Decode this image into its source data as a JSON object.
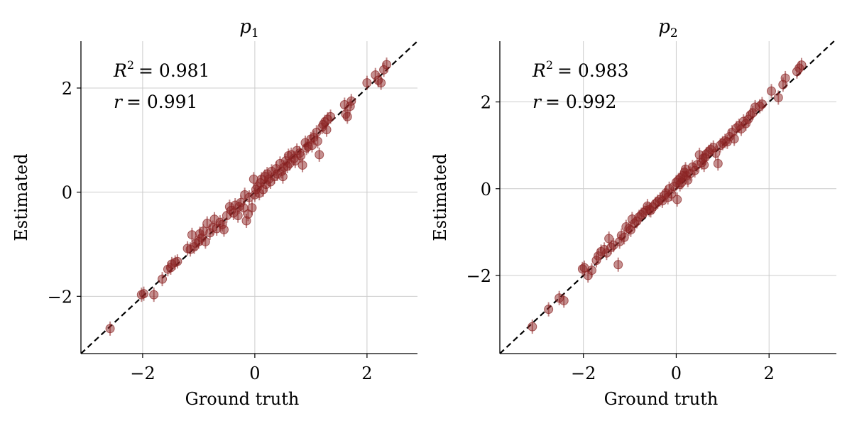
{
  "chart_data": [
    {
      "type": "scatter",
      "title": "p",
      "title_subscript": "1",
      "xlabel": "Ground truth",
      "ylabel": "Estimated",
      "xlim": [
        -3.1,
        2.9
      ],
      "ylim": [
        -3.1,
        2.9
      ],
      "xticks": [
        -2,
        0,
        2
      ],
      "yticks": [
        -2,
        0,
        2
      ],
      "grid": true,
      "reference_line": "identity (dashed black)",
      "marker_color": "#8b2323",
      "stats": {
        "r2_label": "R",
        "r2_value": "= 0.981",
        "r_label": "r",
        "r_value": "= 0.991"
      },
      "points": [
        [
          -2.58,
          -2.62
        ],
        [
          -2.02,
          -1.97
        ],
        [
          -1.98,
          -1.95
        ],
        [
          -1.8,
          -1.97
        ],
        [
          -1.65,
          -1.67
        ],
        [
          -1.55,
          -1.48
        ],
        [
          -1.5,
          -1.45
        ],
        [
          -1.48,
          -1.38
        ],
        [
          -1.42,
          -1.35
        ],
        [
          -1.38,
          -1.33
        ],
        [
          -1.2,
          -1.08
        ],
        [
          -1.15,
          -1.1
        ],
        [
          -1.12,
          -0.82
        ],
        [
          -1.08,
          -1.05
        ],
        [
          -1.05,
          -0.98
        ],
        [
          -1.0,
          -0.95
        ],
        [
          -0.98,
          -0.8
        ],
        [
          -0.95,
          -0.88
        ],
        [
          -0.92,
          -0.75
        ],
        [
          -0.88,
          -0.95
        ],
        [
          -0.85,
          -0.6
        ],
        [
          -0.8,
          -0.78
        ],
        [
          -0.75,
          -0.68
        ],
        [
          -0.72,
          -0.52
        ],
        [
          -0.68,
          -0.7
        ],
        [
          -0.62,
          -0.58
        ],
        [
          -0.58,
          -0.62
        ],
        [
          -0.55,
          -0.72
        ],
        [
          -0.5,
          -0.45
        ],
        [
          -0.45,
          -0.28
        ],
        [
          -0.42,
          -0.35
        ],
        [
          -0.38,
          -0.4
        ],
        [
          -0.35,
          -0.25
        ],
        [
          -0.3,
          -0.45
        ],
        [
          -0.28,
          -0.28
        ],
        [
          -0.25,
          -0.2
        ],
        [
          -0.2,
          -0.3
        ],
        [
          -0.18,
          -0.05
        ],
        [
          -0.15,
          -0.55
        ],
        [
          -0.12,
          -0.42
        ],
        [
          -0.1,
          -0.1
        ],
        [
          -0.05,
          -0.3
        ],
        [
          -0.02,
          0.25
        ],
        [
          0.0,
          -0.05
        ],
        [
          0.02,
          0.05
        ],
        [
          0.05,
          0.1
        ],
        [
          0.08,
          -0.02
        ],
        [
          0.1,
          0.18
        ],
        [
          0.12,
          0.25
        ],
        [
          0.15,
          0.05
        ],
        [
          0.18,
          0.3
        ],
        [
          0.2,
          0.15
        ],
        [
          0.22,
          0.35
        ],
        [
          0.25,
          0.25
        ],
        [
          0.28,
          0.2
        ],
        [
          0.3,
          0.4
        ],
        [
          0.35,
          0.3
        ],
        [
          0.38,
          0.45
        ],
        [
          0.4,
          0.35
        ],
        [
          0.45,
          0.55
        ],
        [
          0.48,
          0.4
        ],
        [
          0.5,
          0.3
        ],
        [
          0.52,
          0.48
        ],
        [
          0.55,
          0.6
        ],
        [
          0.58,
          0.5
        ],
        [
          0.6,
          0.7
        ],
        [
          0.62,
          0.55
        ],
        [
          0.65,
          0.72
        ],
        [
          0.7,
          0.65
        ],
        [
          0.72,
          0.6
        ],
        [
          0.75,
          0.8
        ],
        [
          0.8,
          0.75
        ],
        [
          0.82,
          0.7
        ],
        [
          0.85,
          0.52
        ],
        [
          0.9,
          0.95
        ],
        [
          0.92,
          0.85
        ],
        [
          0.95,
          0.88
        ],
        [
          1.0,
          1.02
        ],
        [
          1.02,
          0.9
        ],
        [
          1.05,
          1.05
        ],
        [
          1.1,
          1.15
        ],
        [
          1.12,
          0.98
        ],
        [
          1.15,
          0.72
        ],
        [
          1.2,
          1.25
        ],
        [
          1.22,
          1.3
        ],
        [
          1.25,
          1.35
        ],
        [
          1.28,
          1.2
        ],
        [
          1.3,
          1.4
        ],
        [
          1.35,
          1.45
        ],
        [
          1.6,
          1.68
        ],
        [
          1.62,
          1.5
        ],
        [
          1.65,
          1.45
        ],
        [
          1.7,
          1.65
        ],
        [
          1.72,
          1.75
        ],
        [
          2.0,
          2.1
        ],
        [
          2.15,
          2.25
        ],
        [
          2.2,
          2.15
        ],
        [
          2.25,
          2.1
        ],
        [
          2.3,
          2.35
        ],
        [
          2.35,
          2.45
        ]
      ]
    },
    {
      "type": "scatter",
      "title": "p",
      "title_subscript": "2",
      "xlabel": "Ground truth",
      "ylabel": "Estimated",
      "xlim": [
        -3.8,
        3.45
      ],
      "ylim": [
        -3.8,
        3.4
      ],
      "xticks": [
        -2,
        0,
        2
      ],
      "yticks": [
        -2,
        0,
        2
      ],
      "grid": true,
      "reference_line": "identity (dashed black)",
      "marker_color": "#8b2323",
      "stats": {
        "r2_label": "R",
        "r2_value": "= 0.983",
        "r_label": "r",
        "r_value": "= 0.992"
      },
      "points": [
        [
          -3.1,
          -3.18
        ],
        [
          -2.75,
          -2.78
        ],
        [
          -2.52,
          -2.52
        ],
        [
          -2.42,
          -2.58
        ],
        [
          -2.02,
          -1.85
        ],
        [
          -1.98,
          -1.82
        ],
        [
          -1.9,
          -2.0
        ],
        [
          -1.82,
          -1.88
        ],
        [
          -1.72,
          -1.65
        ],
        [
          -1.68,
          -1.55
        ],
        [
          -1.62,
          -1.45
        ],
        [
          -1.55,
          -1.4
        ],
        [
          -1.5,
          -1.48
        ],
        [
          -1.45,
          -1.15
        ],
        [
          -1.4,
          -1.35
        ],
        [
          -1.35,
          -1.3
        ],
        [
          -1.25,
          -1.75
        ],
        [
          -1.22,
          -1.22
        ],
        [
          -1.18,
          -1.08
        ],
        [
          -1.12,
          -1.12
        ],
        [
          -1.08,
          -0.88
        ],
        [
          -1.02,
          -0.92
        ],
        [
          -0.98,
          -0.95
        ],
        [
          -0.95,
          -0.7
        ],
        [
          -0.9,
          -0.8
        ],
        [
          -0.85,
          -0.75
        ],
        [
          -0.8,
          -0.65
        ],
        [
          -0.75,
          -0.6
        ],
        [
          -0.7,
          -0.55
        ],
        [
          -0.65,
          -0.5
        ],
        [
          -0.62,
          -0.4
        ],
        [
          -0.58,
          -0.48
        ],
        [
          -0.55,
          -0.5
        ],
        [
          -0.5,
          -0.42
        ],
        [
          -0.45,
          -0.35
        ],
        [
          -0.4,
          -0.3
        ],
        [
          -0.35,
          -0.25
        ],
        [
          -0.3,
          -0.28
        ],
        [
          -0.25,
          -0.15
        ],
        [
          -0.22,
          -0.1
        ],
        [
          -0.18,
          -0.2
        ],
        [
          -0.15,
          0.0
        ],
        [
          -0.1,
          -0.12
        ],
        [
          -0.05,
          0.05
        ],
        [
          0.0,
          0.15
        ],
        [
          0.02,
          -0.25
        ],
        [
          0.05,
          0.2
        ],
        [
          0.08,
          0.1
        ],
        [
          0.1,
          0.25
        ],
        [
          0.12,
          0.15
        ],
        [
          0.15,
          0.3
        ],
        [
          0.18,
          0.38
        ],
        [
          0.2,
          0.45
        ],
        [
          0.22,
          0.3
        ],
        [
          0.25,
          0.2
        ],
        [
          0.3,
          0.35
        ],
        [
          0.35,
          0.5
        ],
        [
          0.4,
          0.42
        ],
        [
          0.45,
          0.55
        ],
        [
          0.5,
          0.78
        ],
        [
          0.55,
          0.6
        ],
        [
          0.58,
          0.7
        ],
        [
          0.6,
          0.55
        ],
        [
          0.62,
          0.72
        ],
        [
          0.65,
          0.8
        ],
        [
          0.7,
          0.85
        ],
        [
          0.75,
          0.9
        ],
        [
          0.8,
          0.95
        ],
        [
          0.85,
          0.82
        ],
        [
          0.9,
          0.58
        ],
        [
          0.95,
          1.0
        ],
        [
          1.0,
          1.05
        ],
        [
          1.05,
          1.1
        ],
        [
          1.1,
          1.08
        ],
        [
          1.15,
          1.2
        ],
        [
          1.2,
          1.3
        ],
        [
          1.25,
          1.15
        ],
        [
          1.3,
          1.4
        ],
        [
          1.35,
          1.45
        ],
        [
          1.4,
          1.38
        ],
        [
          1.45,
          1.55
        ],
        [
          1.5,
          1.5
        ],
        [
          1.55,
          1.6
        ],
        [
          1.6,
          1.7
        ],
        [
          1.65,
          1.75
        ],
        [
          1.7,
          1.88
        ],
        [
          1.8,
          1.9
        ],
        [
          1.85,
          1.95
        ],
        [
          2.05,
          2.25
        ],
        [
          2.2,
          2.1
        ],
        [
          2.3,
          2.4
        ],
        [
          2.35,
          2.55
        ],
        [
          2.6,
          2.7
        ],
        [
          2.65,
          2.78
        ],
        [
          2.7,
          2.85
        ]
      ]
    }
  ]
}
